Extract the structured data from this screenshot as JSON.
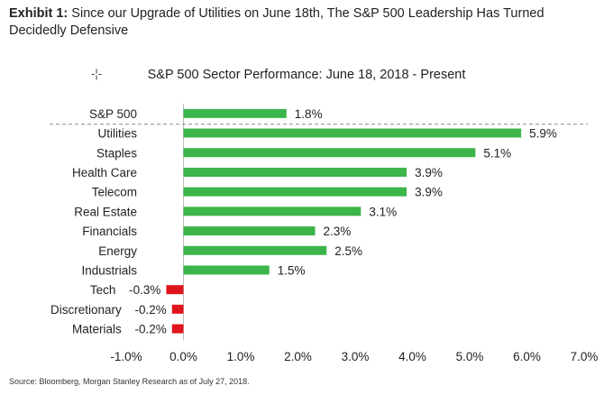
{
  "header": {
    "exhibit_label": "Exhibit 1:",
    "title": "Since our Upgrade of Utilities on June 18th, The S&P 500 Leadership Has Turned Decidedly Defensive"
  },
  "chart_data": {
    "type": "bar",
    "orientation": "horizontal",
    "title": "S&P 500 Sector Performance: June 18, 2018 - Present",
    "categories": [
      "S&P 500",
      "Utilities",
      "Staples",
      "Health Care",
      "Telecom",
      "Real Estate",
      "Financials",
      "Energy",
      "Industrials",
      "Tech",
      "Discretionary",
      "Materials"
    ],
    "values": [
      1.8,
      5.9,
      5.1,
      3.9,
      3.9,
      3.1,
      2.3,
      2.5,
      1.5,
      -0.3,
      -0.2,
      -0.2
    ],
    "data_labels": [
      "1.8%",
      "5.9%",
      "5.1%",
      "3.9%",
      "3.9%",
      "3.1%",
      "2.3%",
      "2.5%",
      "1.5%",
      "-0.3%",
      "-0.2%",
      "-0.2%"
    ],
    "xlim": [
      -1.0,
      7.0
    ],
    "xticks": [
      -1.0,
      0.0,
      1.0,
      2.0,
      3.0,
      4.0,
      5.0,
      6.0,
      7.0
    ],
    "xtick_labels": [
      "-1.0%",
      "0.0%",
      "1.0%",
      "2.0%",
      "3.0%",
      "4.0%",
      "5.0%",
      "6.0%",
      "7.0%"
    ],
    "xlabel": "",
    "ylabel": "",
    "grid": false,
    "benchmark_separator": "dashed line below S&P 500",
    "colors": {
      "positive": "#3cb54a",
      "negative": "#e0141b"
    }
  },
  "icons": {
    "chart_move": "move-icon"
  },
  "source": "Source: Bloomberg, Morgan Stanley Research as of July 27, 2018."
}
